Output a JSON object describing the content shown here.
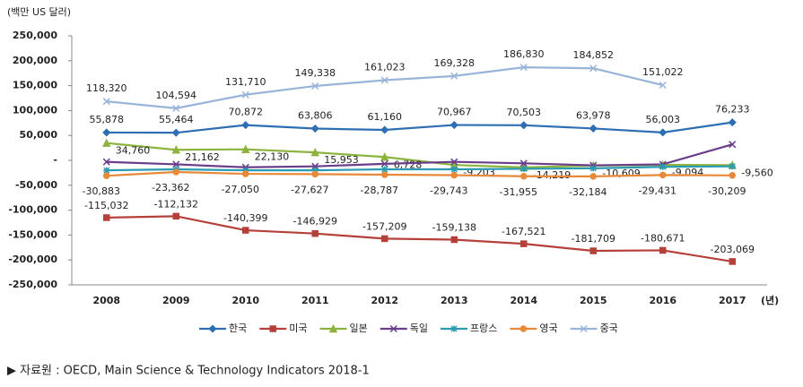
{
  "chart_data": {
    "type": "line",
    "y_label": "(백만 US 달러)",
    "x_label": "(년)",
    "source": "▶ 자료원 : OECD, Main Science & Technology Indicators 2018-1",
    "categories": [
      "2008",
      "2009",
      "2010",
      "2011",
      "2012",
      "2013",
      "2014",
      "2015",
      "2016",
      "2017"
    ],
    "ylim": [
      -250000,
      250000
    ],
    "yticks": [
      {
        "value": 250000,
        "label": "250,000"
      },
      {
        "value": 200000,
        "label": "200,000"
      },
      {
        "value": 150000,
        "label": "150,000"
      },
      {
        "value": 100000,
        "label": "100,000"
      },
      {
        "value": 50000,
        "label": "50,000"
      },
      {
        "value": 0,
        "label": "-"
      },
      {
        "value": -50000,
        "label": "-50,000"
      },
      {
        "value": -100000,
        "label": "-100,000"
      },
      {
        "value": -150000,
        "label": "-150,000"
      },
      {
        "value": -200000,
        "label": "-200,000"
      },
      {
        "value": -250000,
        "label": "-250,000"
      }
    ],
    "grid": false,
    "series": [
      {
        "name": "한국",
        "color": "#2e6fb4",
        "marker": "diamond",
        "values": [
          55878,
          55464,
          70872,
          63806,
          61160,
          70967,
          70503,
          63978,
          56003,
          76233
        ],
        "value_labels": [
          "55,878",
          "55,464",
          "70,872",
          "63,806",
          "61,160",
          "70,967",
          "70,503",
          "63,978",
          "56,003",
          "76,233"
        ]
      },
      {
        "name": "미국",
        "color": "#b5403a",
        "marker": "square",
        "values": [
          -115032,
          -112132,
          -140399,
          -146929,
          -157209,
          -159138,
          -167521,
          -181709,
          -180671,
          -203069
        ],
        "value_labels": [
          "-115,032",
          "-112,132",
          "-140,399",
          "-146,929",
          "-157,209",
          "-159,138",
          "-167,521",
          "-181,709",
          "-180,671",
          "-203,069"
        ]
      },
      {
        "name": "일본",
        "color": "#8db33f",
        "marker": "triangle",
        "values": [
          34760,
          21162,
          22130,
          15953,
          6728,
          -9203,
          -14219,
          -10609,
          -9094,
          -9560
        ],
        "value_labels": [
          "34,760",
          "21,162",
          "22,130",
          "15,953",
          "6,728",
          "-9,203",
          "-14,219",
          "-10,609",
          "-9,094",
          "-9,560"
        ]
      },
      {
        "name": "독일",
        "color": "#6a3d8a",
        "marker": "x",
        "values": [
          -3000,
          -8000,
          -14000,
          -12000,
          -7000,
          -3000,
          -6000,
          -10000,
          -8000,
          32000
        ]
      },
      {
        "name": "프랑스",
        "color": "#2a9bb0",
        "marker": "star",
        "values": [
          -20000,
          -18000,
          -20000,
          -20000,
          -18000,
          -18000,
          -17000,
          -16000,
          -13000,
          -12000
        ]
      },
      {
        "name": "영국",
        "color": "#e8893a",
        "marker": "circle",
        "values": [
          -30883,
          -23362,
          -27050,
          -27627,
          -28787,
          -29743,
          -31955,
          -32184,
          -29431,
          -30209
        ],
        "value_labels": [
          "-30,883",
          "-23,362",
          "-27,050",
          "-27,627",
          "-28,787",
          "-29,743",
          "-31,955",
          "-32,184",
          "-29,431",
          "-30,209"
        ]
      },
      {
        "name": "중국",
        "color": "#98b4d8",
        "marker": "x",
        "values": [
          118320,
          104594,
          131710,
          149338,
          161023,
          169328,
          186830,
          184852,
          151022,
          null
        ],
        "value_labels": [
          "118,320",
          "104,594",
          "131,710",
          "149,338",
          "161,023",
          "169,328",
          "186,830",
          "184,852",
          "151,022",
          null
        ]
      }
    ]
  }
}
